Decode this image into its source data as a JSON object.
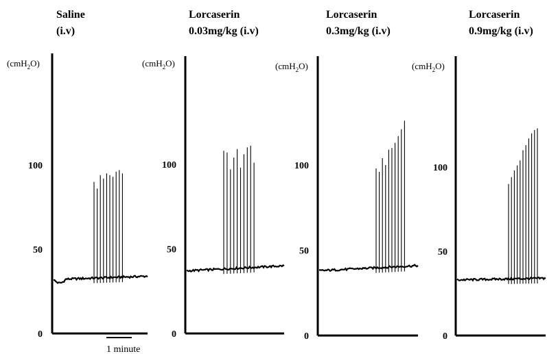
{
  "chart_data": [
    {
      "type": "line",
      "title": [
        "Saline",
        "(i.v)"
      ],
      "ylabel": "(cmH2O)",
      "ylabel_parts": {
        "main": "(cmH",
        "sub": "2",
        "tail": "O)"
      },
      "yticks": [
        0,
        50,
        100
      ],
      "ylim": [
        0,
        150
      ],
      "grid": false,
      "baseline_start": 32,
      "baseline_end": 34,
      "peaks": [
        90,
        86,
        94,
        92,
        95,
        94,
        93,
        96,
        97,
        95
      ]
    },
    {
      "type": "line",
      "title": [
        "Lorcaserin",
        "0.03mg/kg (i.v)"
      ],
      "ylabel": "(cmH2O)",
      "ylabel_parts": {
        "main": "(cmH",
        "sub": "2",
        "tail": "O)"
      },
      "yticks": [
        0,
        50,
        100
      ],
      "ylim": [
        0,
        150
      ],
      "grid": false,
      "baseline_start": 37,
      "baseline_end": 40,
      "peaks": [
        108,
        107,
        97,
        104,
        109,
        98,
        106,
        110,
        111,
        101
      ]
    },
    {
      "type": "line",
      "title": [
        "Lorcaserin",
        "0.3mg/kg (i.v)"
      ],
      "ylabel": "(cmH2O)",
      "ylabel_parts": {
        "main": "(cmH",
        "sub": "2",
        "tail": "O)"
      },
      "yticks": [
        0,
        50,
        100
      ],
      "ylim": [
        0,
        150
      ],
      "grid": false,
      "baseline_start": 38,
      "baseline_end": 41,
      "peaks": [
        98,
        96,
        104,
        100,
        109,
        110,
        113,
        117,
        121,
        126
      ]
    },
    {
      "type": "line",
      "title": [
        "Lorcaserin",
        "0.9mg/kg (i.v)"
      ],
      "ylabel": "(cmH2O)",
      "ylabel_parts": {
        "main": "(cmH",
        "sub": "2",
        "tail": "O)"
      },
      "yticks": [
        0,
        50,
        100
      ],
      "ylim": [
        0,
        150
      ],
      "grid": false,
      "baseline_start": 33,
      "baseline_end": 34,
      "peaks": [
        90,
        94,
        98,
        101,
        104,
        110,
        113,
        117,
        120,
        122,
        123
      ]
    }
  ],
  "scale_bar": {
    "label": "1 minute",
    "panel": 0
  }
}
